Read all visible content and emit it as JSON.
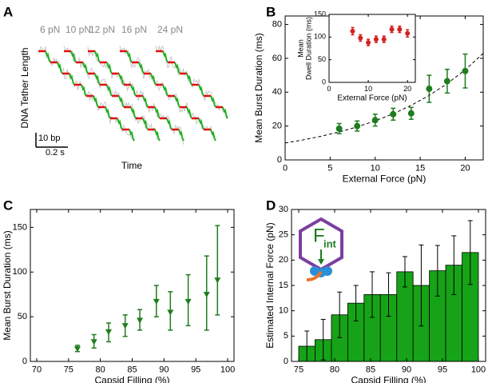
{
  "chart_data": [
    {
      "type": "trace",
      "panel_label": "A",
      "trace_labels": [
        "6 pN",
        "10 pN",
        "12 pN",
        "16 pN",
        "24 pN"
      ],
      "ylabel": "DNA Tether Length",
      "xlabel": "Time",
      "scale_y_label": "10 bp",
      "scale_x_label": "0.2 s"
    },
    {
      "type": "errorbar",
      "panel_label": "B",
      "x": [
        6,
        8,
        10,
        12,
        14,
        16,
        18,
        20
      ],
      "values": [
        18.5,
        20,
        23.5,
        27,
        27.5,
        42,
        46.5,
        52.5
      ],
      "errors": [
        3,
        3,
        3.5,
        3.5,
        3.5,
        8,
        7,
        10
      ],
      "color": "#1e7d1e",
      "fit": {
        "x": [
          0,
          2,
          4,
          6,
          8,
          10,
          12,
          14,
          16,
          18,
          20,
          22
        ],
        "y": [
          10,
          11.82,
          13.97,
          16.51,
          19.52,
          23.07,
          27.27,
          32.23,
          38.1,
          45.04,
          53.23,
          62.93
        ],
        "color": "#000000"
      },
      "xlim": [
        0,
        22
      ],
      "ylim": [
        0,
        85
      ],
      "xticks": [
        0,
        5,
        10,
        15,
        20
      ],
      "yticks": [
        0,
        20,
        40,
        60,
        80
      ],
      "xlabel": "External Force (pN)",
      "ylabel": "Mean Burst Duration (ms)",
      "inset": {
        "type": "errorbar",
        "x": [
          6,
          8,
          10,
          12,
          14,
          16,
          18,
          20
        ],
        "values": [
          113,
          98,
          88,
          95,
          95,
          117,
          117,
          108
        ],
        "errors": [
          8,
          7,
          7,
          7,
          7,
          7,
          7,
          8
        ],
        "color": "#d42020",
        "xlim": [
          0,
          22
        ],
        "ylim": [
          0,
          150
        ],
        "xticks": [
          0,
          10,
          20
        ],
        "yticks": [
          0,
          50,
          100,
          150
        ],
        "xlabel": "External Force (pN)",
        "ylabel": [
          "Mean",
          "Dwell Duration (ms)"
        ]
      }
    },
    {
      "type": "errorbar",
      "panel_label": "C",
      "marker": "triangle-down",
      "x": [
        76.4,
        79.0,
        81.3,
        83.9,
        86.2,
        88.8,
        91.0,
        93.8,
        96.7,
        98.4
      ],
      "values": [
        14,
        22,
        33,
        40,
        46,
        67,
        55,
        67,
        75,
        91
      ],
      "lower": [
        11,
        15,
        22,
        28,
        35,
        50,
        35,
        40,
        35,
        52
      ],
      "upper": [
        18,
        30,
        43,
        52,
        58,
        85,
        78,
        97,
        118,
        152
      ],
      "color": "#1e7d1e",
      "xlim": [
        69,
        101
      ],
      "ylim": [
        0,
        170
      ],
      "xticks": [
        70,
        75,
        80,
        85,
        90,
        95,
        100
      ],
      "yticks": [
        0,
        50,
        100,
        150
      ],
      "xlabel": "Capsid Filling (%)",
      "ylabel": "Mean Burst Duration (ms)"
    },
    {
      "type": "histogram",
      "panel_label": "D",
      "bins": [
        75,
        77.27,
        79.55,
        81.82,
        84.09,
        86.36,
        88.64,
        90.91,
        93.18,
        95.45,
        97.73,
        100
      ],
      "values": [
        3,
        4.3,
        9.2,
        11.5,
        13.2,
        13.2,
        17.7,
        15,
        17.9,
        19,
        21.5
      ],
      "errors": [
        3,
        4,
        4.5,
        3.5,
        4.5,
        4.3,
        3,
        8,
        5,
        5.8,
        6.3
      ],
      "color": "#17a317",
      "icon_label": "F",
      "icon_subscript": "int",
      "xlim": [
        74,
        101
      ],
      "ylim": [
        0,
        30
      ],
      "xticks": [
        75,
        80,
        85,
        90,
        95,
        100
      ],
      "yticks": [
        0,
        5,
        10,
        15,
        20,
        25,
        30
      ],
      "xlabel": "Capsid Filling (%)",
      "ylabel": "Estimated Internal Force (pN)"
    }
  ]
}
